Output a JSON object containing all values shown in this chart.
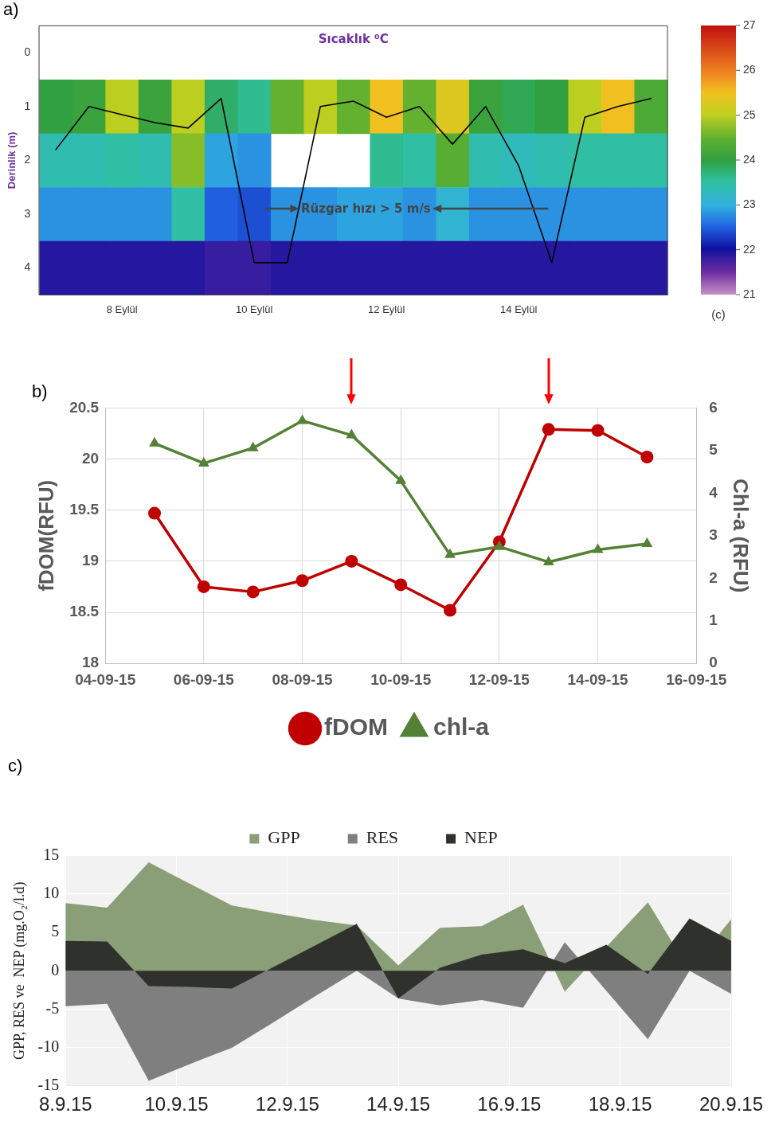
{
  "chart_data": [
    {
      "type": "heatmap",
      "title": "a)",
      "subtitle": "Sıcaklık ⁰C",
      "ylabel": "Derinlik (m)",
      "clabel": "(c)",
      "categories": [
        null,
        null,
        "8 Eylül",
        null,
        null,
        null,
        "10 Eylül",
        null,
        null,
        null,
        "12 Eylül",
        null,
        null,
        null,
        "14 Eylül",
        null,
        null,
        null,
        null
      ],
      "y_categories": [
        "0",
        "1",
        "2",
        "3",
        "4"
      ],
      "cells": [
        [
          null,
          null,
          null,
          null,
          null,
          null,
          null,
          null,
          null,
          null,
          null,
          null,
          null,
          null,
          null,
          null,
          null,
          null,
          null
        ],
        [
          24.0,
          24.1,
          25.0,
          24.1,
          25.0,
          23.8,
          23.6,
          24.5,
          25.0,
          24.5,
          25.5,
          24.5,
          25.3,
          24.1,
          23.9,
          24.0,
          25.0,
          25.5,
          24.3
        ],
        [
          23.4,
          23.4,
          23.5,
          23.4,
          24.7,
          22.9,
          22.8,
          null,
          null,
          null,
          23.6,
          23.5,
          24.4,
          23.4,
          23.3,
          23.4,
          23.5,
          23.5,
          23.5
        ],
        [
          22.8,
          22.8,
          22.8,
          22.8,
          23.5,
          22.5,
          22.4,
          22.8,
          22.8,
          22.9,
          22.9,
          22.8,
          23.1,
          22.8,
          22.8,
          22.8,
          22.8,
          22.8,
          22.8
        ],
        [
          21.9,
          21.9,
          21.9,
          21.9,
          21.9,
          21.8,
          21.8,
          21.9,
          21.9,
          21.9,
          21.9,
          21.9,
          21.9,
          21.9,
          21.9,
          21.9,
          21.9,
          21.9,
          21.9
        ]
      ],
      "clim": [
        21,
        27
      ],
      "cticks": [
        21,
        22,
        23,
        24,
        25,
        26,
        27
      ],
      "series": [
        {
          "type": "line",
          "color": "#000000",
          "values": [
            1.8,
            1.0,
            1.15,
            1.3,
            1.4,
            0.85,
            3.9,
            3.9,
            1.0,
            0.9,
            1.2,
            1.0,
            1.7,
            1.0,
            2.1,
            3.9,
            1.2,
            1.0,
            0.85
          ]
        }
      ],
      "annotations": [
        "Rüzgar hızı > 5 m/s"
      ]
    },
    {
      "type": "line",
      "title": "b)",
      "ylabel": "fDOM(RFU)",
      "y2label": "Chl-a (RFU)",
      "x": [
        "--09-05",
        "--09-06",
        "--09-07",
        "--09-08",
        "--09-09",
        "--09-10",
        "--09-11",
        "--09-12",
        "--09-13",
        "--09-14",
        "--09-15"
      ],
      "xlim": [
        "--09-04",
        "--09-16"
      ],
      "xticks": [
        {
          "value": "--09-04",
          "label": "04-09-15"
        },
        {
          "value": "--09-06",
          "label": "06-09-15"
        },
        {
          "value": "--09-08",
          "label": "08-09-15"
        },
        {
          "value": "--09-10",
          "label": "10-09-15"
        },
        {
          "value": "--09-12",
          "label": "12-09-15"
        },
        {
          "value": "--09-14",
          "label": "14-09-15"
        },
        {
          "value": "--09-16",
          "label": "16-09-15"
        }
      ],
      "ylim": [
        18,
        20.5
      ],
      "yticks": [
        18,
        18.5,
        19,
        19.5,
        20,
        20.5
      ],
      "y2lim": [
        0,
        6
      ],
      "y2ticks": [
        0,
        1,
        2,
        3,
        4,
        5,
        6
      ],
      "series": [
        {
          "name": "fDOM",
          "color": "#c00000",
          "marker": "circle",
          "values": [
            19.47,
            18.75,
            18.7,
            18.81,
            19.0,
            18.77,
            18.52,
            19.19,
            20.29,
            20.28,
            20.02
          ]
        },
        {
          "name": "chl-a",
          "color": "#538135",
          "marker": "triangle",
          "axis": "y2",
          "values": [
            5.17,
            4.7,
            5.06,
            5.7,
            5.36,
            4.29,
            2.55,
            2.74,
            2.38,
            2.67,
            2.81
          ]
        }
      ],
      "grid": true,
      "legend": "bottom"
    },
    {
      "type": "area",
      "title": "c)",
      "ylabel": "GPP, RES ve  NEP (mg.O₂/l.d)",
      "x": [
        "--09-08T00:00",
        "--09-08T18:00",
        "--09-09T12:00",
        "--09-10T06:00",
        "--09-11T00:00",
        "--09-11T18:00",
        "--09-12T12:00",
        "--09-13T06:00",
        "--09-14T00:00",
        "--09-14T18:00",
        "--09-15T12:00",
        "--09-16T06:00",
        "--09-17T00:00",
        "--09-17T18:00",
        "--09-18T12:00",
        "--09-19T06:00",
        "--09-20T00:00"
      ],
      "xlim": [
        "--09-08",
        "--09-20"
      ],
      "xticks": [
        {
          "value": "--09-08",
          "label": "8.9.15"
        },
        {
          "value": "--09-10",
          "label": "10.9.15"
        },
        {
          "value": "--09-12",
          "label": "12.9.15"
        },
        {
          "value": "--09-14",
          "label": "14.9.15"
        },
        {
          "value": "--09-16",
          "label": "16.9.15"
        },
        {
          "value": "--09-18",
          "label": "18.9.15"
        },
        {
          "value": "--09-20",
          "label": "20.9.15"
        }
      ],
      "ylim": [
        -15,
        15
      ],
      "yticks": [
        -15,
        -10,
        -5,
        0,
        5,
        10,
        15
      ],
      "series": [
        {
          "name": "GPP",
          "color": "#8a9e78",
          "values": [
            8.8,
            8.2,
            14.1,
            11.3,
            8.5,
            7.5,
            6.6,
            5.9,
            0.7,
            5.6,
            5.8,
            8.6,
            -2.7,
            null,
            8.9,
            0,
            6.7
          ]
        },
        {
          "name": "RES",
          "color": "#7f7f7f",
          "values": [
            -4.6,
            -4.3,
            -14.3,
            -12.1,
            -10.0,
            -6.7,
            -3.3,
            0,
            -3.6,
            -4.5,
            -3.8,
            -4.8,
            3.7,
            -2.6,
            -8.9,
            0,
            -3.0
          ]
        },
        {
          "name": "NEP",
          "color": "#2f322c",
          "values": [
            3.9,
            3.8,
            -2.0,
            -2.1,
            -2.3,
            0.5,
            3.3,
            6.1,
            -3.6,
            0.4,
            2.1,
            2.8,
            1.0,
            3.4,
            -0.4,
            6.8,
            3.9
          ]
        }
      ],
      "grid": true,
      "legend": "top"
    }
  ]
}
